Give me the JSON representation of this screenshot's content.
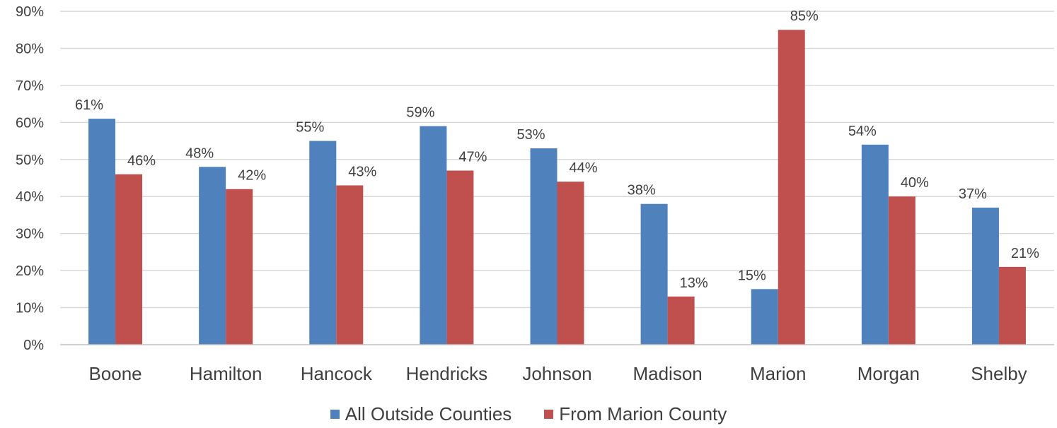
{
  "chart_data": {
    "type": "bar",
    "categories": [
      "Boone",
      "Hamilton",
      "Hancock",
      "Hendricks",
      "Johnson",
      "Madison",
      "Marion",
      "Morgan",
      "Shelby"
    ],
    "series": [
      {
        "name": "All Outside Counties",
        "color": "#4f81bd",
        "values": [
          61,
          48,
          55,
          59,
          53,
          38,
          15,
          54,
          37
        ],
        "labels": [
          "61%",
          "48%",
          "55%",
          "59%",
          "53%",
          "38%",
          "15%",
          "54%",
          "37%"
        ]
      },
      {
        "name": "From Marion County",
        "color": "#c0504d",
        "values": [
          46,
          42,
          43,
          47,
          44,
          13,
          85,
          40,
          21
        ],
        "labels": [
          "46%",
          "42%",
          "43%",
          "47%",
          "44%",
          "13%",
          "85%",
          "40%",
          "21%"
        ]
      }
    ],
    "y_ticks": [
      "0%",
      "10%",
      "20%",
      "30%",
      "40%",
      "50%",
      "60%",
      "70%",
      "80%",
      "90%"
    ],
    "ylim": [
      0,
      90
    ],
    "y_unit": "%",
    "grid": true,
    "legend_position": "bottom"
  }
}
